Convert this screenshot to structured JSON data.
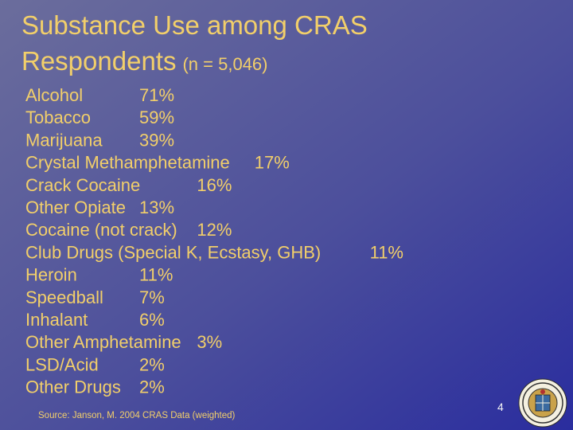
{
  "slide": {
    "title_line1": "Substance Use among CRAS",
    "title_line2": "Respondents",
    "subtitle": "(n = 5,046)",
    "items": [
      {
        "label": "Alcohol",
        "value": "71%"
      },
      {
        "label": "Tobacco",
        "value": "59%"
      },
      {
        "label": "Marijuana",
        "value": "39%"
      },
      {
        "label": "Crystal Methamphetamine",
        "value": "17%"
      },
      {
        "label": "Crack Cocaine",
        "value": "16%"
      },
      {
        "label": "Other Opiate",
        "value": "13%"
      },
      {
        "label": "Cocaine (not crack)",
        "value": "12%"
      },
      {
        "label": "Club Drugs (Special K, Ecstasy, GHB)",
        "value": "11%"
      },
      {
        "label": "Heroin",
        "value": "11%"
      },
      {
        "label": "Speedball",
        "value": "7%"
      },
      {
        "label": "Inhalant",
        "value": "6%"
      },
      {
        "label": "Other Amphetamine",
        "value": "3%"
      },
      {
        "label": "LSD/Acid",
        "value": "2%"
      },
      {
        "label": "Other Drugs",
        "value": "2%"
      }
    ],
    "source": "Source: Janson, M. 2004 CRAS Data (weighted)",
    "page_number": "4"
  }
}
